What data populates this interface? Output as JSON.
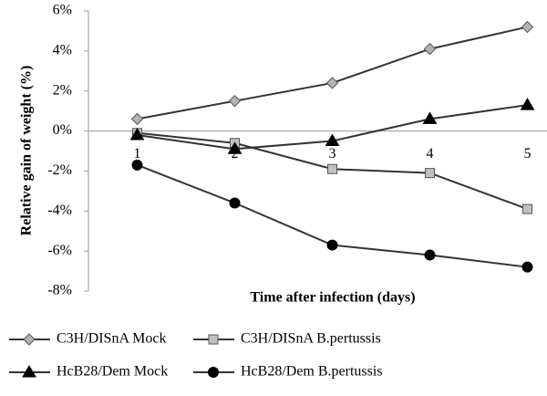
{
  "chart_data": {
    "type": "line",
    "x_label": "Time after infection (days)",
    "y_label": "Relative gain of weight (%)",
    "categories": [
      "1",
      "2",
      "3",
      "4",
      "5"
    ],
    "ylim": [
      -8,
      6
    ],
    "yticks": [
      {
        "value": -8,
        "label": "-8%"
      },
      {
        "value": -6,
        "label": "-6%"
      },
      {
        "value": -4,
        "label": "-4%"
      },
      {
        "value": -2,
        "label": "-2%"
      },
      {
        "value": 0,
        "label": "0%"
      },
      {
        "value": 2,
        "label": "2%"
      },
      {
        "value": 4,
        "label": "4%"
      },
      {
        "value": 6,
        "label": "6%"
      }
    ],
    "series": [
      {
        "name": "C3H/DISnA Mock",
        "color": "#b3b3b3",
        "marker": "diamond",
        "values": [
          0.6,
          1.5,
          2.4,
          4.1,
          5.2
        ]
      },
      {
        "name": "C3H/DISnA B.pertussis",
        "color": "#c0c0c0",
        "marker": "square",
        "values": [
          -0.1,
          -0.6,
          -1.9,
          -2.1,
          -3.9
        ]
      },
      {
        "name": "HcB28/Dem Mock",
        "color": "#000000",
        "marker": "triangle",
        "values": [
          -0.2,
          -0.9,
          -0.5,
          0.6,
          1.3
        ]
      },
      {
        "name": "HcB28/Dem B.pertussis",
        "color": "#000000",
        "marker": "circle",
        "values": [
          -1.7,
          -3.6,
          -5.7,
          -6.2,
          -6.8
        ]
      }
    ]
  }
}
